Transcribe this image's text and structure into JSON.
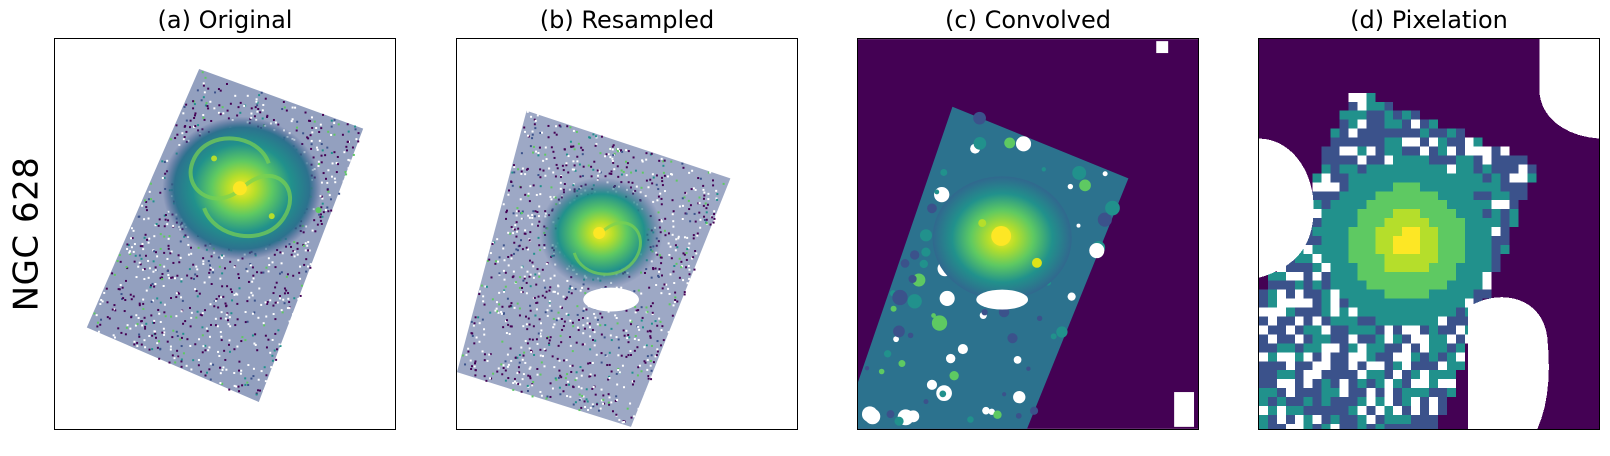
{
  "figure": {
    "row_label": "NGC 628",
    "panels": [
      {
        "title": "(a) Original",
        "background": "#ffffff"
      },
      {
        "title": "(b) Resampled",
        "background": "#ffffff"
      },
      {
        "title": "(c) Convolved",
        "background": "#440154"
      },
      {
        "title": "(d) Pixelation",
        "background": "#440154"
      }
    ],
    "colormap": [
      "#440154",
      "#3b528b",
      "#21918c",
      "#5ec962",
      "#fde725"
    ]
  }
}
